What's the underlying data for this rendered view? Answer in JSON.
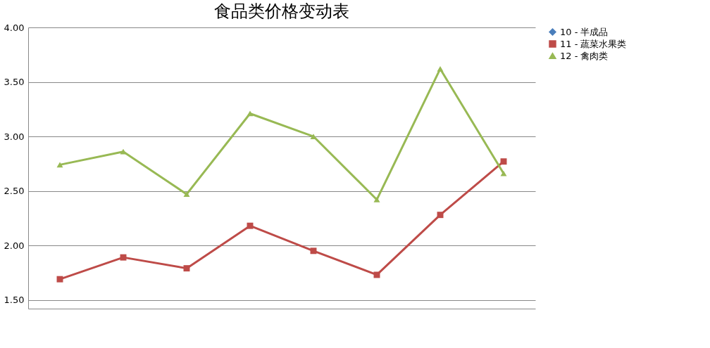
{
  "chart_data": {
    "type": "line",
    "title": "食品类价格变动表",
    "categories": [
      null,
      null,
      null,
      null,
      null,
      null,
      null,
      null
    ],
    "series": [
      {
        "name": "10 - 半成品",
        "color": "#4a7ebb",
        "marker": "diamond",
        "values": [
          null,
          null,
          null,
          null,
          null,
          null,
          null,
          null
        ]
      },
      {
        "name": "11 - 蔬菜水果类",
        "color": "#be4b48",
        "marker": "square",
        "values": [
          1.69,
          1.89,
          1.79,
          2.18,
          1.95,
          1.73,
          2.28,
          2.77
        ]
      },
      {
        "name": "12 - 禽肉类",
        "color": "#98b954",
        "marker": "triangle",
        "values": [
          2.74,
          2.86,
          2.47,
          3.21,
          3.0,
          2.42,
          3.62,
          2.66
        ]
      }
    ],
    "ylim": [
      1.42,
      4.0
    ],
    "yticks": [
      {
        "value": 1.5,
        "label": "1.50"
      },
      {
        "value": 2.0,
        "label": "2.00"
      },
      {
        "value": 2.5,
        "label": "2.50"
      },
      {
        "value": 3.0,
        "label": "3.00"
      },
      {
        "value": 3.5,
        "label": "3.50"
      },
      {
        "value": 4.0,
        "label": "4.00"
      }
    ],
    "grid": "y",
    "legend": "right",
    "tick_labels": "y",
    "line_style": "solid"
  }
}
